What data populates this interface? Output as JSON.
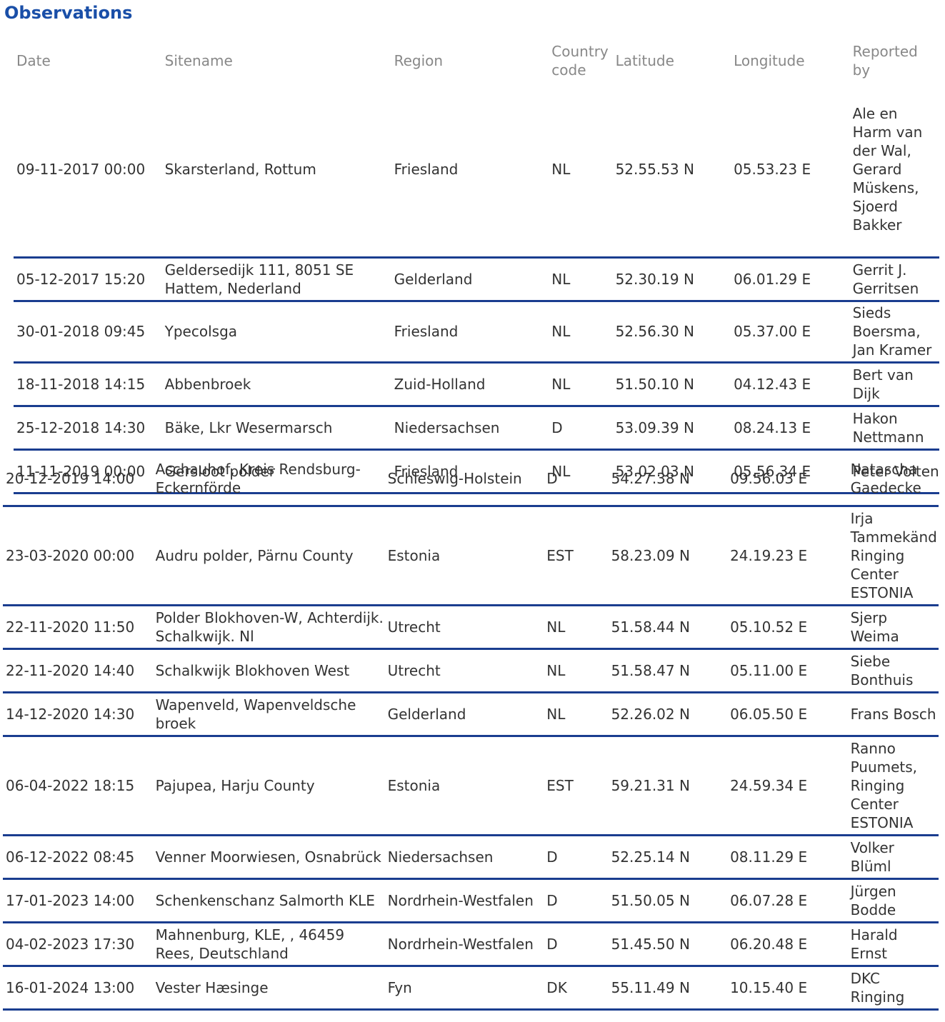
{
  "title": "Observations",
  "headers": {
    "date": "Date",
    "sitename": "Sitename",
    "region": "Region",
    "country_code": "Country code",
    "latitude": "Latitude",
    "longitude": "Longitude",
    "reported_by": "Reported by"
  },
  "rows": [
    {
      "date": "09-11-2017 00:00",
      "sitename": "Skarsterland, Rottum",
      "region": "Friesland",
      "cc": "NL",
      "lat": "52.55.53 N",
      "lon": "05.53.23 E",
      "reporter": "Ale en Harm van der Wal, Gerard Müskens, Sjoerd Bakker"
    },
    {
      "date": "05-12-2017 15:20",
      "sitename": "Geldersedijk 111, 8051 SE Hattem, Nederland",
      "region": "Gelderland",
      "cc": "NL",
      "lat": "52.30.19 N",
      "lon": "06.01.29 E",
      "reporter": "Gerrit J. Gerritsen"
    },
    {
      "date": "30-01-2018 09:45",
      "sitename": "Ypecolsga",
      "region": "Friesland",
      "cc": "NL",
      "lat": "52.56.30 N",
      "lon": "05.37.00 E",
      "reporter": "Sieds Boersma, Jan Kramer"
    },
    {
      "date": "18-11-2018 14:15",
      "sitename": "Abbenbroek",
      "region": "Zuid-Holland",
      "cc": "NL",
      "lat": "51.50.10 N",
      "lon": "04.12.43 E",
      "reporter": "Bert van Dijk"
    },
    {
      "date": "25-12-2018 14:30",
      "sitename": "Bäke, Lkr Wesermarsch",
      "region": "Niedersachsen",
      "cc": "D",
      "lat": "53.09.39 N",
      "lon": "08.24.13 E",
      "reporter": "Hakon Nettmann"
    },
    {
      "date": "11-11-2019 00:00",
      "sitename": "Gersloot polder",
      "region": "Friesland",
      "cc": "NL",
      "lat": "53.02.03 N",
      "lon": "05.56.34 E",
      "reporter": "Peter Volten"
    },
    {
      "date": "20-12-2019 14:00",
      "sitename": "Aschauhof, Kreis Rendsburg-Eckernförde",
      "region": "Schleswig-Holstein",
      "cc": "D",
      "lat": "54.27.38 N",
      "lon": "09.56.03 E",
      "reporter": "Natascha Gaedecke"
    },
    {
      "date": "23-03-2020 00:00",
      "sitename": "Audru polder, Pärnu County",
      "region": "Estonia",
      "cc": "EST",
      "lat": "58.23.09 N",
      "lon": "24.19.23 E",
      "reporter": "Irja Tammekänd Ringing Center ESTONIA"
    },
    {
      "date": "22-11-2020 11:50",
      "sitename": "Polder Blokhoven-W, Achterdijk. Schalkwijk. Nl",
      "region": "Utrecht",
      "cc": "NL",
      "lat": "51.58.44 N",
      "lon": "05.10.52 E",
      "reporter": "Sjerp Weima"
    },
    {
      "date": "22-11-2020 14:40",
      "sitename": "Schalkwijk Blokhoven West",
      "region": "Utrecht",
      "cc": "NL",
      "lat": "51.58.47 N",
      "lon": "05.11.00 E",
      "reporter": "Siebe Bonthuis"
    },
    {
      "date": "14-12-2020 14:30",
      "sitename": "Wapenveld, Wapenveldsche broek",
      "region": "Gelderland",
      "cc": "NL",
      "lat": "52.26.02 N",
      "lon": "06.05.50 E",
      "reporter": "Frans Bosch"
    },
    {
      "date": "06-04-2022 18:15",
      "sitename": "Pajupea, Harju County",
      "region": "Estonia",
      "cc": "EST",
      "lat": "59.21.31 N",
      "lon": "24.59.34 E",
      "reporter": "Ranno Puumets, Ringing Center ESTONIA"
    },
    {
      "date": "06-12-2022 08:45",
      "sitename": "Venner Moorwiesen, Osnabrück",
      "region": "Niedersachsen",
      "cc": "D",
      "lat": "52.25.14 N",
      "lon": "08.11.29 E",
      "reporter": "Volker Blüml"
    },
    {
      "date": "17-01-2023 14:00",
      "sitename": "Schenkenschanz Salmorth KLE",
      "region": "Nordrhein-Westfalen",
      "cc": "D",
      "lat": "51.50.05 N",
      "lon": "06.07.28 E",
      "reporter": "Jürgen Bodde"
    },
    {
      "date": "04-02-2023 17:30",
      "sitename": "Mahnenburg, KLE, , 46459 Rees, Deutschland",
      "region": "Nordrhein-Westfalen",
      "cc": "D",
      "lat": "51.45.50 N",
      "lon": "06.20.48 E",
      "reporter": "Harald Ernst"
    },
    {
      "date": "16-01-2024 13:00",
      "sitename": "Vester Hæsinge",
      "region": "Fyn",
      "cc": "DK",
      "lat": "55.11.49 N",
      "lon": "10.15.40 E",
      "reporter": "DKC Ringing"
    }
  ]
}
